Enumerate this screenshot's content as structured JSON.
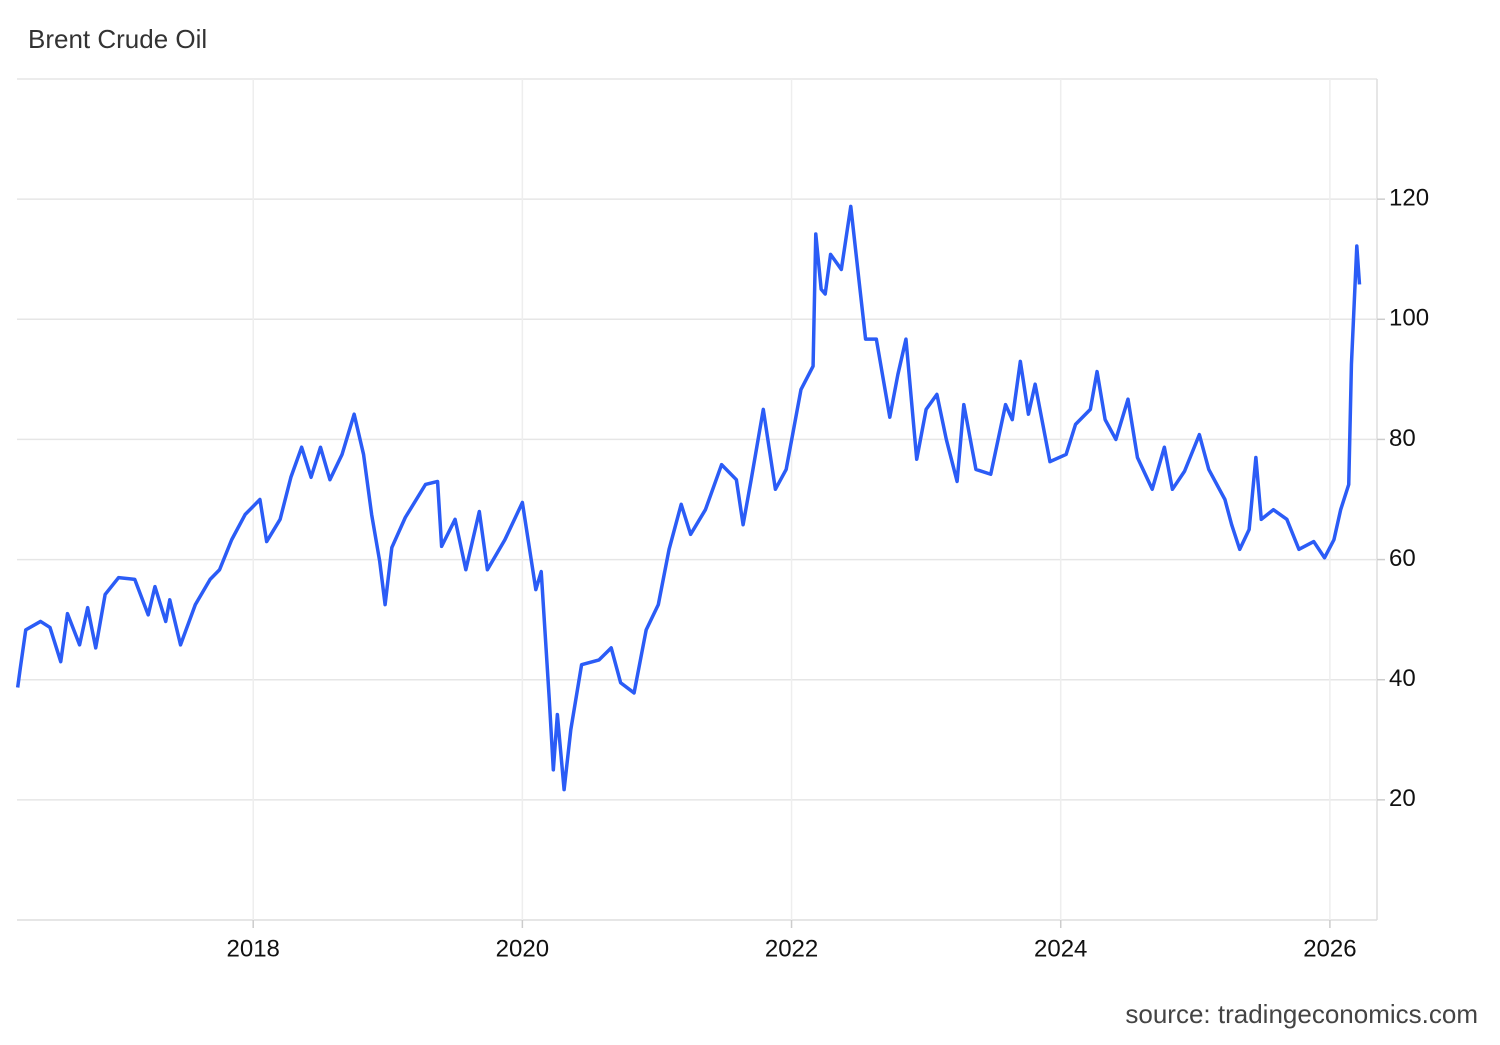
{
  "chart_data": {
    "type": "line",
    "title": "Brent Crude Oil",
    "source": "source: tradingeconomics.com",
    "color": "#2b5cf6",
    "grid": true,
    "xlim": [
      2016.245,
      2026.35
    ],
    "xticks": [
      2018,
      2020,
      2022,
      2024,
      2026
    ],
    "ylim": [
      0,
      140
    ],
    "yticks": [
      20,
      40,
      60,
      80,
      100,
      120
    ],
    "x": [
      2016.25,
      2016.27,
      2016.31,
      2016.42,
      2016.49,
      2016.57,
      2016.62,
      2016.71,
      2016.77,
      2016.83,
      2016.9,
      2017.0,
      2017.12,
      2017.22,
      2017.27,
      2017.35,
      2017.38,
      2017.46,
      2017.57,
      2017.68,
      2017.75,
      2017.84,
      2017.94,
      2018.05,
      2018.1,
      2018.2,
      2018.28,
      2018.36,
      2018.43,
      2018.5,
      2018.57,
      2018.66,
      2018.75,
      2018.82,
      2018.88,
      2018.94,
      2018.98,
      2019.03,
      2019.13,
      2019.28,
      2019.37,
      2019.4,
      2019.5,
      2019.58,
      2019.68,
      2019.74,
      2019.87,
      2020.0,
      2020.1,
      2020.14,
      2020.2,
      2020.23,
      2020.26,
      2020.31,
      2020.36,
      2020.44,
      2020.57,
      2020.66,
      2020.73,
      2020.83,
      2020.92,
      2021.01,
      2021.09,
      2021.18,
      2021.25,
      2021.36,
      2021.48,
      2021.59,
      2021.64,
      2021.7,
      2021.79,
      2021.88,
      2021.96,
      2022.07,
      2022.16,
      2022.18,
      2022.22,
      2022.25,
      2022.29,
      2022.37,
      2022.44,
      2022.5,
      2022.55,
      2022.63,
      2022.73,
      2022.79,
      2022.85,
      2022.93,
      2023.0,
      2023.08,
      2023.15,
      2023.23,
      2023.28,
      2023.37,
      2023.48,
      2023.59,
      2023.64,
      2023.7,
      2023.76,
      2023.81,
      2023.92,
      2024.04,
      2024.11,
      2024.22,
      2024.27,
      2024.33,
      2024.41,
      2024.5,
      2024.57,
      2024.68,
      2024.77,
      2024.83,
      2024.92,
      2025.03,
      2025.1,
      2025.22,
      2025.27,
      2025.33,
      2025.4,
      2025.45,
      2025.49,
      2025.58,
      2025.68,
      2025.77,
      2025.88,
      2025.96,
      2026.03,
      2026.08,
      2026.14,
      2026.16,
      2026.2,
      2026.22
    ],
    "values": [
      38.7,
      42,
      48.3,
      49.7,
      48.7,
      43,
      51,
      45.8,
      52,
      45.3,
      54.2,
      57,
      56.7,
      50.8,
      55.5,
      49.7,
      53.3,
      45.8,
      52.5,
      56.7,
      58.3,
      63.3,
      67.5,
      70,
      63,
      66.7,
      73.7,
      78.7,
      73.7,
      78.7,
      73.3,
      77.5,
      84.2,
      77.5,
      67.5,
      59.7,
      52.5,
      62,
      67,
      72.5,
      73,
      62.2,
      66.7,
      58.3,
      68,
      58.3,
      63.3,
      69.5,
      55,
      58,
      36.7,
      25,
      34.2,
      21.7,
      31.7,
      42.5,
      43.3,
      45.3,
      39.5,
      37.8,
      48.3,
      52.5,
      61.7,
      69.2,
      64.2,
      68.3,
      75.8,
      73.3,
      65.8,
      73.3,
      85,
      71.7,
      75,
      88.3,
      92.2,
      114.2,
      105,
      104.2,
      110.8,
      108.3,
      118.8,
      106.7,
      96.7,
      96.7,
      83.7,
      90.8,
      96.7,
      76.7,
      85,
      87.5,
      80,
      73,
      85.8,
      75,
      74.2,
      85.8,
      83.3,
      93,
      84.2,
      89.2,
      76.3,
      77.5,
      82.5,
      85,
      91.3,
      83.3,
      80,
      86.7,
      77,
      71.7,
      78.7,
      71.7,
      74.7,
      80.8,
      75,
      70,
      65.8,
      61.7,
      65,
      77,
      66.7,
      68.3,
      66.7,
      61.7,
      63,
      60.3,
      63.3,
      68.3,
      72.5,
      92.5,
      112.2,
      105.8
    ]
  }
}
